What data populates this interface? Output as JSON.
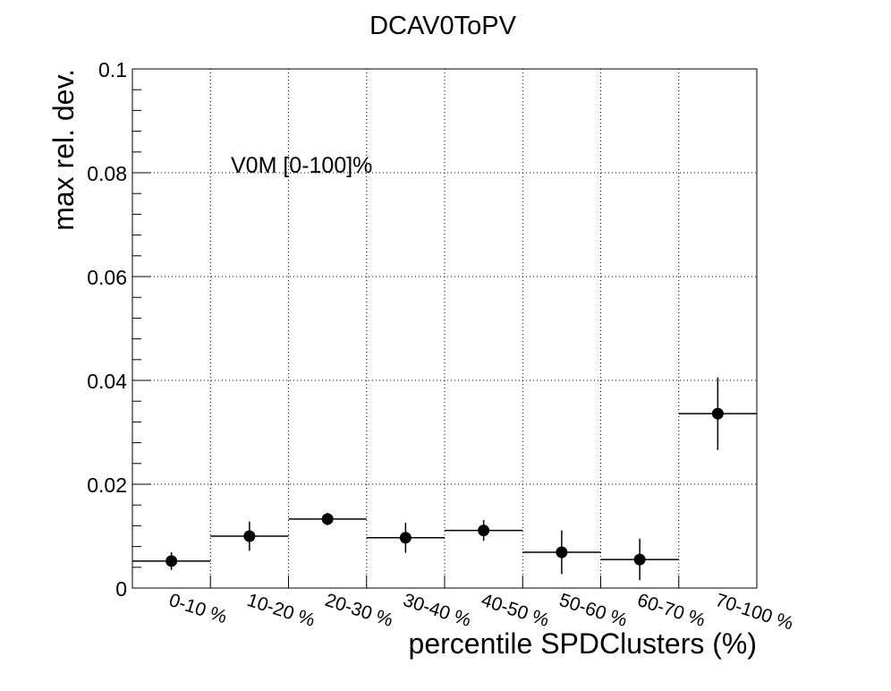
{
  "chart_data": {
    "type": "scatter",
    "title": "DCAV0ToPV",
    "xlabel": "percentile SPDClusters (%)",
    "ylabel": "max rel. dev.",
    "annotation": "V0M [0-100]%",
    "categories": [
      "0-10 %",
      "10-20 %",
      "20-30 %",
      "30-40 %",
      "40-50 %",
      "50-60 %",
      "60-70 %",
      "70-100 %"
    ],
    "values": [
      0.0052,
      0.01,
      0.0133,
      0.0097,
      0.0111,
      0.0069,
      0.0055,
      0.0336
    ],
    "errors": [
      0.0017,
      0.0028,
      0.0012,
      0.0029,
      0.002,
      0.0042,
      0.004,
      0.007
    ],
    "ylim": [
      0,
      0.1
    ],
    "yticks": [
      0,
      0.02,
      0.04,
      0.06,
      0.08,
      0.1
    ],
    "ytick_labels": [
      "0",
      "0.02",
      "0.04",
      "0.06",
      "0.08",
      "0.1"
    ],
    "grid": true,
    "marker_color": "#000000"
  }
}
